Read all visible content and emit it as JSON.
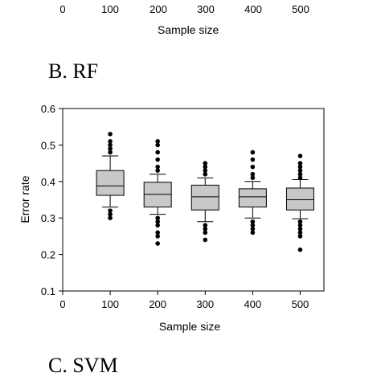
{
  "top_fragment": {
    "tick_labels": [
      "0",
      "100",
      "200",
      "300",
      "400",
      "500"
    ],
    "xlabel": "Sample size"
  },
  "panels": {
    "b_label": "B. RF",
    "c_label": "C. SVM"
  },
  "chart_data": {
    "type": "box",
    "xlabel": "Sample size",
    "ylabel": "Error rate",
    "xlim": [
      0,
      550
    ],
    "ylim": [
      0.1,
      0.6
    ],
    "x_ticks": [
      0,
      100,
      200,
      300,
      400,
      500
    ],
    "y_ticks": [
      0.1,
      0.2,
      0.3,
      0.4,
      0.5,
      0.6
    ],
    "grid": false,
    "boxes": [
      {
        "x": 100,
        "q1": 0.362,
        "median": 0.388,
        "q3": 0.43,
        "whisker_low": 0.33,
        "whisker_high": 0.47,
        "outliers": [
          0.3,
          0.31,
          0.32,
          0.48,
          0.49,
          0.5,
          0.51,
          0.53
        ]
      },
      {
        "x": 200,
        "q1": 0.33,
        "median": 0.365,
        "q3": 0.398,
        "whisker_low": 0.31,
        "whisker_high": 0.42,
        "outliers": [
          0.23,
          0.25,
          0.26,
          0.28,
          0.29,
          0.3,
          0.43,
          0.44,
          0.46,
          0.48,
          0.5,
          0.51
        ]
      },
      {
        "x": 300,
        "q1": 0.322,
        "median": 0.358,
        "q3": 0.39,
        "whisker_low": 0.29,
        "whisker_high": 0.41,
        "outliers": [
          0.24,
          0.26,
          0.27,
          0.28,
          0.42,
          0.43,
          0.44,
          0.45
        ]
      },
      {
        "x": 400,
        "q1": 0.33,
        "median": 0.358,
        "q3": 0.38,
        "whisker_low": 0.3,
        "whisker_high": 0.4,
        "outliers": [
          0.26,
          0.27,
          0.28,
          0.29,
          0.41,
          0.42,
          0.44,
          0.46,
          0.48
        ]
      },
      {
        "x": 500,
        "q1": 0.322,
        "median": 0.35,
        "q3": 0.382,
        "whisker_low": 0.298,
        "whisker_high": 0.405,
        "outliers": [
          0.213,
          0.25,
          0.26,
          0.27,
          0.28,
          0.29,
          0.41,
          0.42,
          0.43,
          0.44,
          0.45,
          0.47
        ]
      }
    ],
    "colors": {
      "box_fill": "#c8c8c8",
      "stroke": "#000000",
      "outlier": "#000000"
    }
  }
}
